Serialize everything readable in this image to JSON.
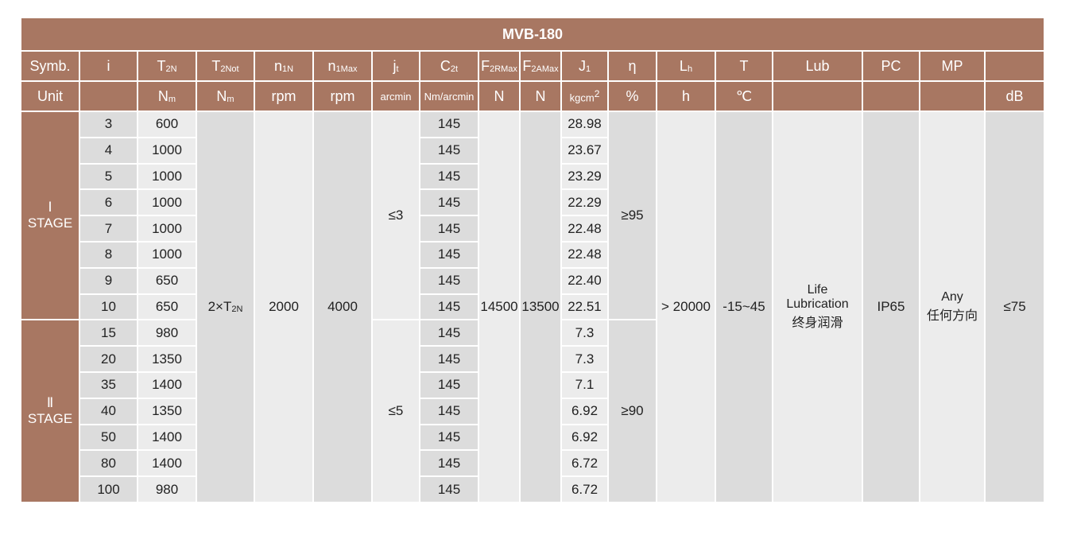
{
  "title": "MVB-180",
  "colors": {
    "header_bg": "#a87762",
    "cell_dark": "#dcdcdc",
    "cell_light": "#ececec"
  },
  "header": {
    "symbol_row": [
      {
        "main": "Symb.",
        "sub": ""
      },
      {
        "main": "i",
        "sub": ""
      },
      {
        "main": "T",
        "sub": "2N"
      },
      {
        "main": "T",
        "sub": "2Not"
      },
      {
        "main": "n",
        "sub": "1N"
      },
      {
        "main": "n",
        "sub": "1Max"
      },
      {
        "main": "j",
        "sub": "t"
      },
      {
        "main": "C",
        "sub": "2t"
      },
      {
        "main": "F",
        "sub": "2RMax"
      },
      {
        "main": "F",
        "sub": "2AMax"
      },
      {
        "main": "J",
        "sub": "1"
      },
      {
        "main": "η",
        "sub": ""
      },
      {
        "main": "L",
        "sub": "h"
      },
      {
        "main": "T",
        "sub": ""
      },
      {
        "main": "Lub",
        "sub": ""
      },
      {
        "main": "PC",
        "sub": ""
      },
      {
        "main": "MP",
        "sub": ""
      },
      {
        "main": "",
        "sub": ""
      }
    ],
    "unit_row": [
      {
        "main": "Unit",
        "sub": ""
      },
      {
        "main": "",
        "sub": ""
      },
      {
        "main": "N",
        "sub": "m"
      },
      {
        "main": "N",
        "sub": "m"
      },
      {
        "main": "rpm",
        "sub": ""
      },
      {
        "main": "rpm",
        "sub": ""
      },
      {
        "main": "arcmin",
        "sub": ""
      },
      {
        "main": "Nm/arcmin",
        "sub": ""
      },
      {
        "main": "N",
        "sub": ""
      },
      {
        "main": "N",
        "sub": ""
      },
      {
        "main": "kgcm",
        "sup": "2"
      },
      {
        "main": "%",
        "sub": ""
      },
      {
        "main": "h",
        "sub": ""
      },
      {
        "main": "℃",
        "sub": ""
      },
      {
        "main": "",
        "sub": ""
      },
      {
        "main": "",
        "sub": ""
      },
      {
        "main": "",
        "sub": ""
      },
      {
        "main": "dB",
        "sub": ""
      }
    ]
  },
  "stages": [
    {
      "numeral": "Ⅰ",
      "label": "STAGE",
      "backlash": "≤3",
      "efficiency": "≥95"
    },
    {
      "numeral": "Ⅱ",
      "label": "STAGE",
      "backlash": "≤5",
      "efficiency": "≥90"
    }
  ],
  "rows": [
    {
      "i": "3",
      "t2n": "600",
      "c2t": "145",
      "j1": "28.98"
    },
    {
      "i": "4",
      "t2n": "1000",
      "c2t": "145",
      "j1": "23.67"
    },
    {
      "i": "5",
      "t2n": "1000",
      "c2t": "145",
      "j1": "23.29"
    },
    {
      "i": "6",
      "t2n": "1000",
      "c2t": "145",
      "j1": "22.29"
    },
    {
      "i": "7",
      "t2n": "1000",
      "c2t": "145",
      "j1": "22.48"
    },
    {
      "i": "8",
      "t2n": "1000",
      "c2t": "145",
      "j1": "22.48"
    },
    {
      "i": "9",
      "t2n": "650",
      "c2t": "145",
      "j1": "22.40"
    },
    {
      "i": "10",
      "t2n": "650",
      "c2t": "145",
      "j1": "22.51"
    },
    {
      "i": "15",
      "t2n": "980",
      "c2t": "145",
      "j1": "7.3"
    },
    {
      "i": "20",
      "t2n": "1350",
      "c2t": "145",
      "j1": "7.3"
    },
    {
      "i": "35",
      "t2n": "1400",
      "c2t": "145",
      "j1": "7.1"
    },
    {
      "i": "40",
      "t2n": "1350",
      "c2t": "145",
      "j1": "6.92"
    },
    {
      "i": "50",
      "t2n": "1400",
      "c2t": "145",
      "j1": "6.92"
    },
    {
      "i": "80",
      "t2n": "1400",
      "c2t": "145",
      "j1": "6.72"
    },
    {
      "i": "100",
      "t2n": "980",
      "c2t": "145",
      "j1": "6.72"
    }
  ],
  "shared": {
    "t2not_main": "2×T",
    "t2not_sub": "2N",
    "n1n": "2000",
    "n1max": "4000",
    "f2rmax": "14500",
    "f2amax": "13500",
    "lh": "> 20000",
    "temp": "-15~45",
    "lub": [
      "Life",
      "Lubrication",
      "终身润滑"
    ],
    "pc": "IP65",
    "mp": [
      "Any",
      "任何方向"
    ],
    "db": "≤75"
  }
}
